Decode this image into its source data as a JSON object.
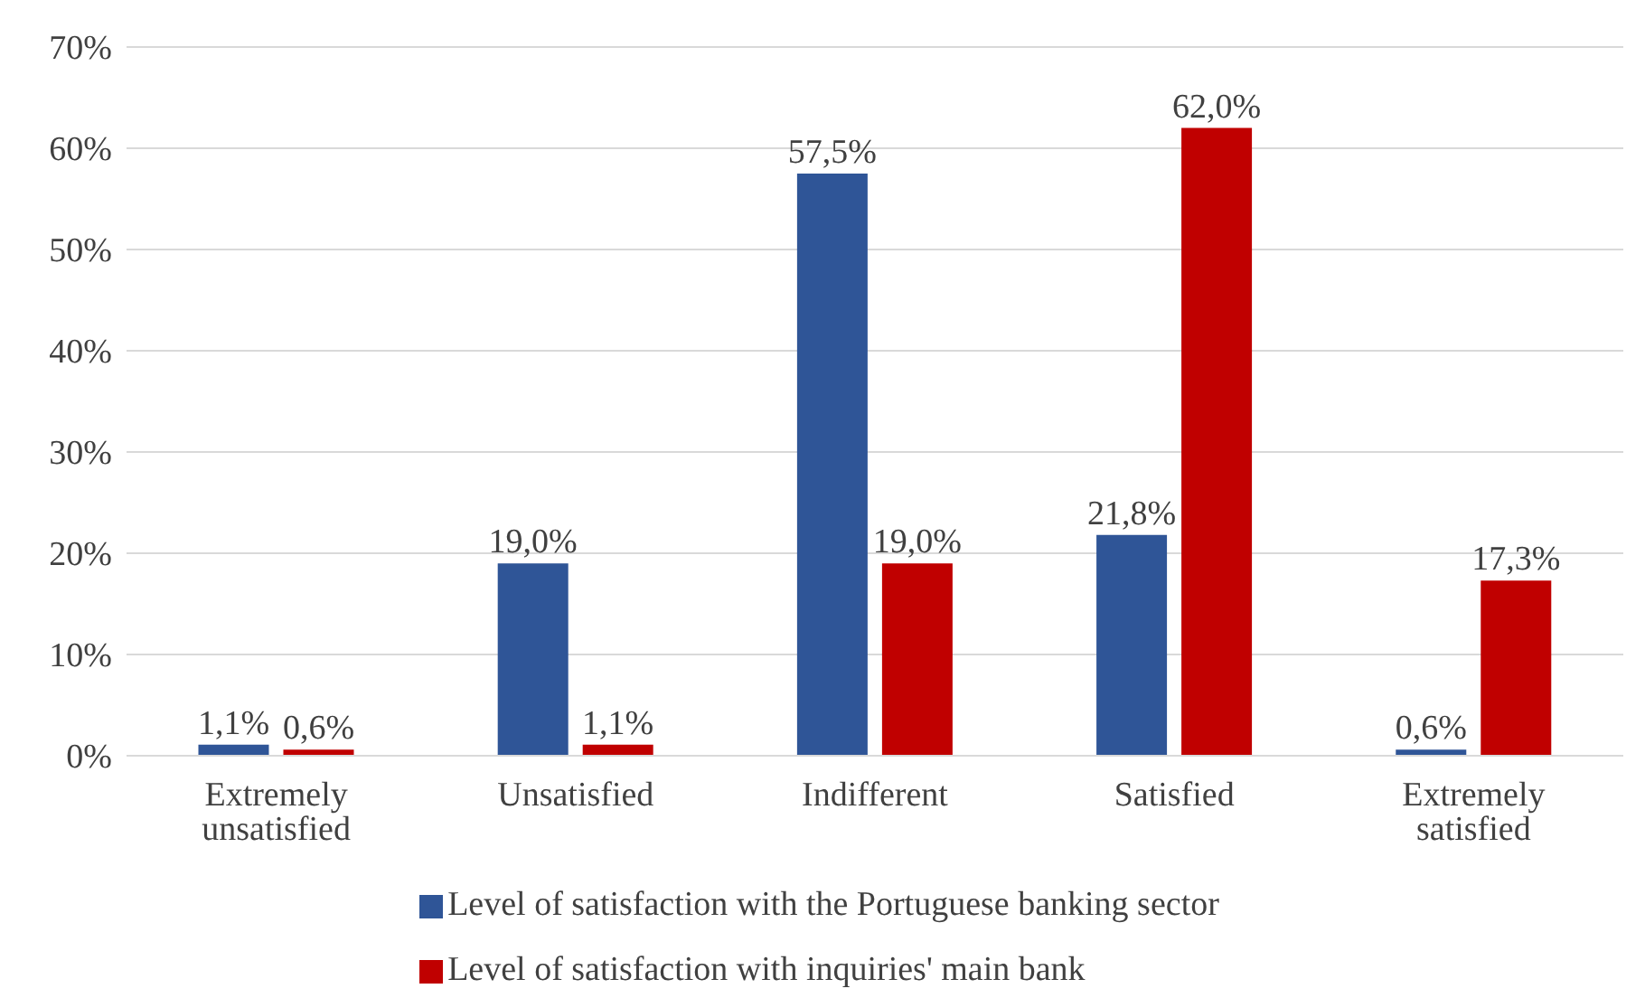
{
  "chart_data": {
    "type": "bar",
    "categories": [
      "Extremely unsatisfied",
      "Unsatisfied",
      "Indifferent",
      "Satisfied",
      "Extremely satisfied"
    ],
    "series": [
      {
        "name": "Level of satisfaction with the Portuguese banking sector",
        "color": "#2f5597",
        "values": [
          1.1,
          19.0,
          57.5,
          21.8,
          0.6
        ],
        "value_labels": [
          "1,1%",
          "19,0%",
          "57,5%",
          "21,8%",
          "0,6%"
        ]
      },
      {
        "name": "Level of satisfaction with inquiries' main bank",
        "color": "#c00000",
        "values": [
          0.6,
          1.1,
          19.0,
          62.0,
          17.3
        ],
        "value_labels": [
          "0,6%",
          "1,1%",
          "19,0%",
          "62,0%",
          "17,3%"
        ]
      }
    ],
    "ylim": [
      0,
      70
    ],
    "yticks": [
      {
        "value": 0,
        "label": "0%"
      },
      {
        "value": 10,
        "label": "10%"
      },
      {
        "value": 20,
        "label": "20%"
      },
      {
        "value": 30,
        "label": "30%"
      },
      {
        "value": 40,
        "label": "40%"
      },
      {
        "value": 50,
        "label": "50%"
      },
      {
        "value": 60,
        "label": "60%"
      },
      {
        "value": 70,
        "label": "70%"
      }
    ],
    "grid": "y",
    "legend": "bottom"
  }
}
